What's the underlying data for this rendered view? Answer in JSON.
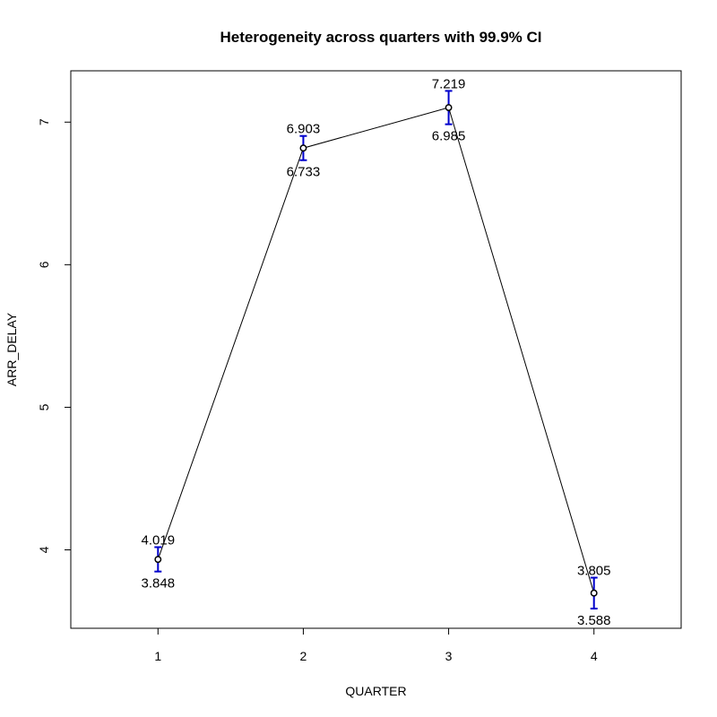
{
  "chart_data": {
    "type": "line",
    "title": "Heterogeneity across quarters with 99.9% CI",
    "xlabel": "QUARTER",
    "ylabel": "ARR_DELAY",
    "x": [
      1,
      2,
      3,
      4
    ],
    "x_ticks": [
      "1",
      "2",
      "3",
      "4"
    ],
    "xlim": [
      0.4,
      4.6
    ],
    "y_ticks": [
      4,
      5,
      6,
      7
    ],
    "ylim": [
      3.45,
      7.36
    ],
    "series": [
      {
        "mean": [
          3.933,
          6.818,
          7.102,
          3.697
        ],
        "ci_upper": [
          4.019,
          6.903,
          7.219,
          3.805
        ],
        "ci_lower": [
          3.848,
          6.733,
          6.985,
          3.588
        ],
        "upper_labels": [
          "4.019",
          "6.903",
          "7.219",
          "3.805"
        ],
        "lower_labels": [
          "3.848",
          "6.733",
          "6.985",
          "3.588"
        ]
      }
    ],
    "grid": false,
    "colors": {
      "line": "#000000",
      "error_bar": "#0000cc",
      "point": "#000000"
    }
  }
}
